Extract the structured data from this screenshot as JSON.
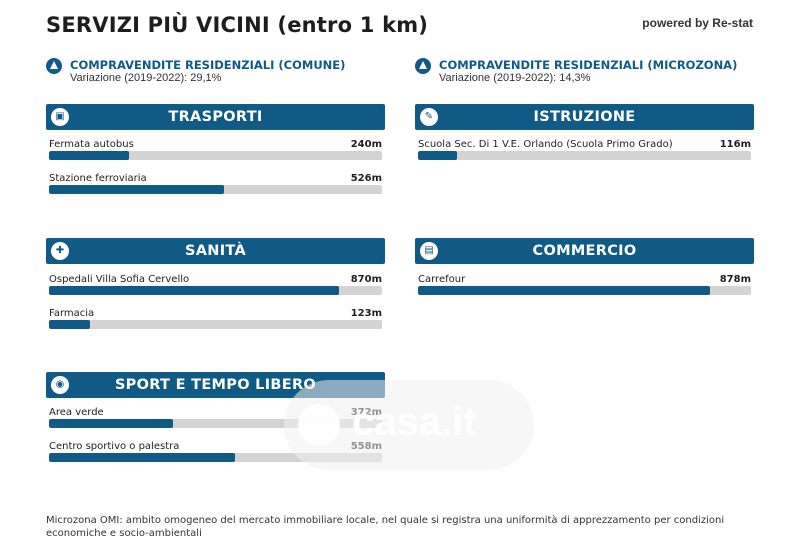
{
  "header": {
    "title": "SERVIZI PIÙ VICINI (entro 1 km)",
    "powered_by": "powered by Re-stat"
  },
  "stats": [
    {
      "label": "COMPRAVENDITE RESIDENZIALI (COMUNE)",
      "variation": "Variazione (2019-2022): 29,1%",
      "icon": "triangle-up-icon"
    },
    {
      "label": "COMPRAVENDITE RESIDENZIALI (MICROZONA)",
      "variation": "Variazione (2019-2022): 14,3%",
      "icon": "triangle-up-icon"
    }
  ],
  "categories": {
    "trasporti": {
      "title": "TRASPORTI",
      "icon": "bus-icon",
      "items": [
        {
          "name": "Fermata autobus",
          "distance": "240m",
          "fill": 0.24
        },
        {
          "name": "Stazione ferroviaria",
          "distance": "526m",
          "fill": 0.526
        }
      ]
    },
    "istruzione": {
      "title": "ISTRUZIONE",
      "icon": "school-icon",
      "items": [
        {
          "name": "Scuola Sec. Di 1 V.E. Orlando (Scuola Primo Grado)",
          "distance": "116m",
          "fill": 0.116
        }
      ]
    },
    "sanita": {
      "title": "SANITÀ",
      "icon": "hospital-icon",
      "items": [
        {
          "name": "Ospedali Villa Sofia Cervello",
          "distance": "870m",
          "fill": 0.87
        },
        {
          "name": "Farmacia",
          "distance": "123m",
          "fill": 0.123
        }
      ]
    },
    "commercio": {
      "title": "COMMERCIO",
      "icon": "cart-icon",
      "items": [
        {
          "name": "Carrefour",
          "distance": "878m",
          "fill": 0.878
        }
      ]
    },
    "sport": {
      "title": "SPORT E TEMPO LIBERO",
      "icon": "ball-icon",
      "items": [
        {
          "name": "Area verde",
          "distance": "372m",
          "fill": 0.372
        },
        {
          "name": "Centro sportivo o palestra",
          "distance": "558m",
          "fill": 0.558
        }
      ]
    }
  },
  "watermark": {
    "text": "casa.it"
  },
  "footnote": "Microzona OMI: ambito omogeneo del mercato immobiliare locale, nel quale si registra una uniformità di apprezzamento per condizioni economiche e socio-ambientali"
}
